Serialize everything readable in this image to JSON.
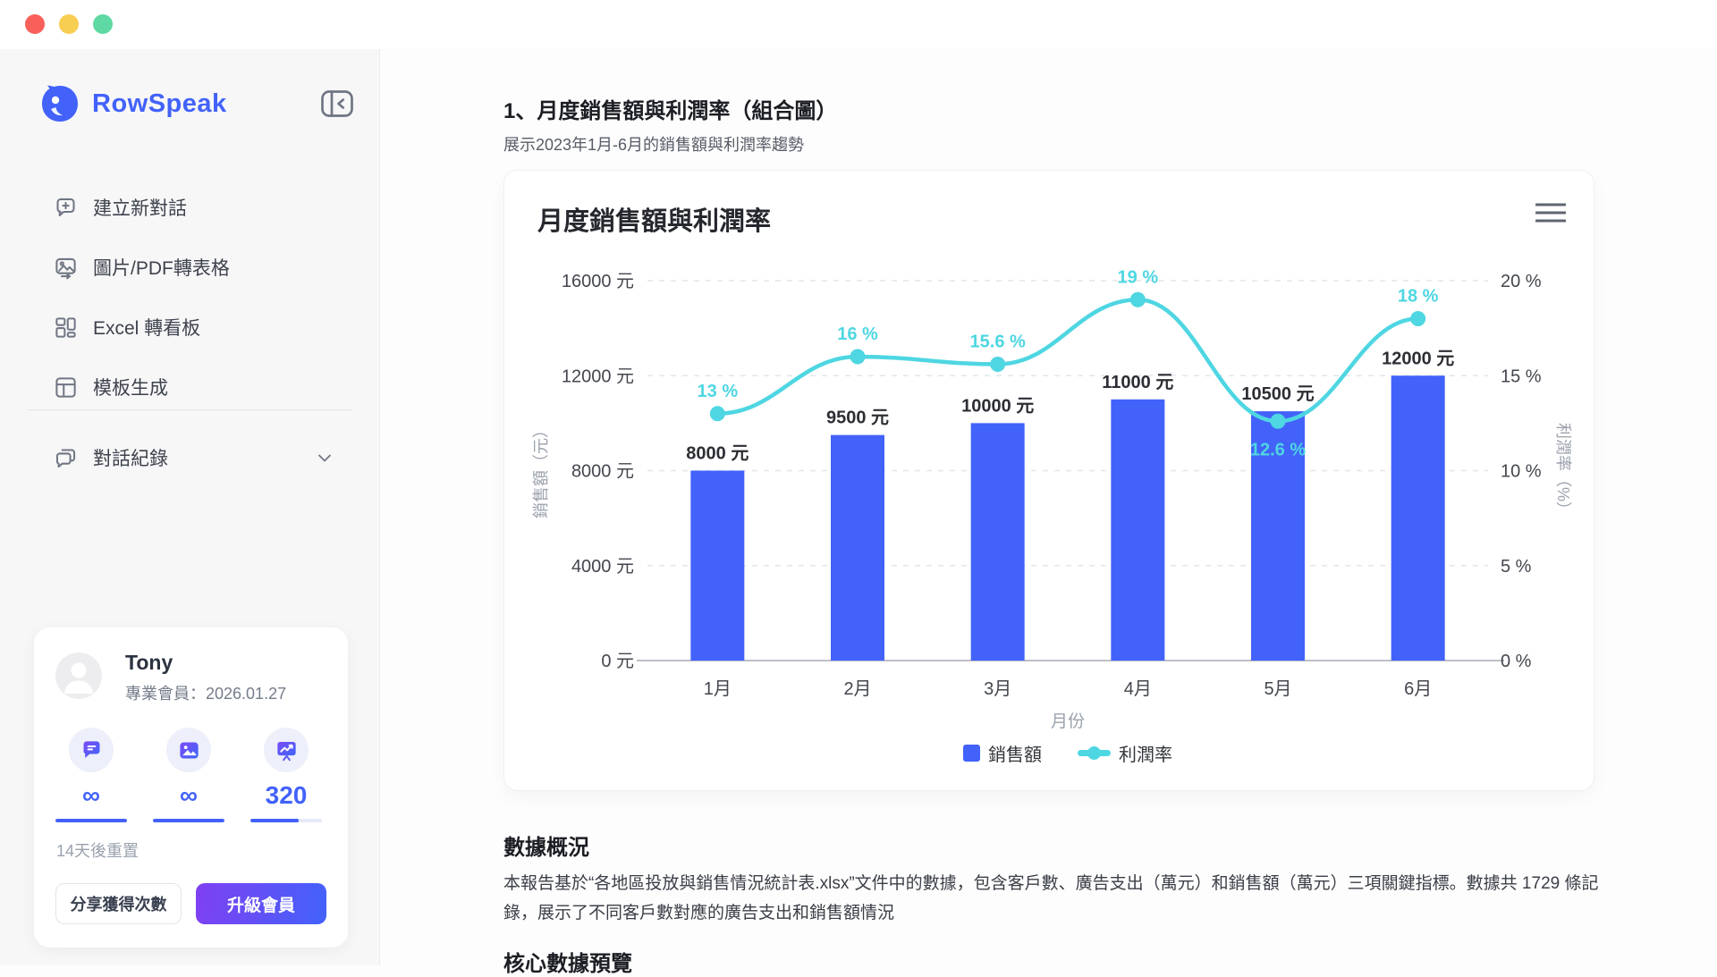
{
  "window": {
    "traffic_lights": [
      "#f9605a",
      "#f8ce52",
      "#5fd9a3"
    ]
  },
  "sidebar": {
    "brand": {
      "name": "RowSpeak",
      "color": "#4262fa",
      "logo_icon": "rowspeak-bird-logo"
    },
    "items": [
      {
        "label": "建立新對話",
        "icon": "chat-plus-icon"
      },
      {
        "label": "圖片/PDF轉表格",
        "icon": "image-convert-icon"
      },
      {
        "label": "Excel 轉看板",
        "icon": "dashboard-icon"
      },
      {
        "label": "模板生成",
        "icon": "template-icon"
      }
    ],
    "history": {
      "label": "對話紀錄",
      "icon": "chat-history-icon",
      "chevron": "chevron-down-icon"
    },
    "user": {
      "name": "Tony",
      "membership": "專業會員：2026.01.27",
      "quotas": [
        {
          "icon": "chat-quota-icon",
          "value": "∞",
          "progress": 1
        },
        {
          "icon": "image-quota-icon",
          "value": "∞",
          "progress": 1
        },
        {
          "icon": "board-quota-icon",
          "value": "320",
          "progress": 0.68
        }
      ],
      "reset_note": "14天後重置",
      "share_button": "分享獲得次數",
      "upgrade_button": "升級會員"
    }
  },
  "main": {
    "section_title": "1、月度銷售額與利潤率（組合圖）",
    "section_subtitle": "展示2023年1月-6月的銷售額與利潤率趨勢",
    "overview_title": "數據概況",
    "overview_text": "本報告基於“各地區投放與銷售情況統計表.xlsx”文件中的數據，包含客戶數、廣告支出（萬元）和銷售額（萬元）三項關鍵指標。數據共 1729 條記錄，展示了不同客戶數對應的廣告支出和銷售額情況",
    "next_section_title": "核心數據預覽"
  },
  "chart_data": {
    "type": "combo",
    "title": "月度銷售額與利潤率",
    "categories": [
      "1月",
      "2月",
      "3月",
      "4月",
      "5月",
      "6月"
    ],
    "series": [
      {
        "name": "銷售額",
        "type": "bar",
        "axis": "left",
        "unit": "元",
        "color": "#4262fa",
        "values": [
          8000,
          9500,
          10000,
          11000,
          10500,
          12000
        ]
      },
      {
        "name": "利潤率",
        "type": "line",
        "axis": "right",
        "unit": "%",
        "color": "#4ed6e2",
        "smooth": true,
        "values": [
          13,
          16,
          15.6,
          19,
          12.6,
          18
        ],
        "label_positions": [
          "top",
          "top",
          "top",
          "top",
          "bottom",
          "top"
        ]
      }
    ],
    "left_axis": {
      "label": "銷售額（元）",
      "unit": "元",
      "min": 0,
      "max": 16000,
      "ticks": [
        0,
        4000,
        8000,
        12000,
        16000
      ]
    },
    "right_axis": {
      "label": "利潤率（%）",
      "unit": "%",
      "min": 0,
      "max": 20,
      "ticks": [
        0,
        5,
        10,
        15,
        20
      ]
    },
    "xlabel": "月份",
    "grid": "horizontal-dashed",
    "legend": [
      "銷售額",
      "利潤率"
    ],
    "legend_position": "bottom-center"
  }
}
